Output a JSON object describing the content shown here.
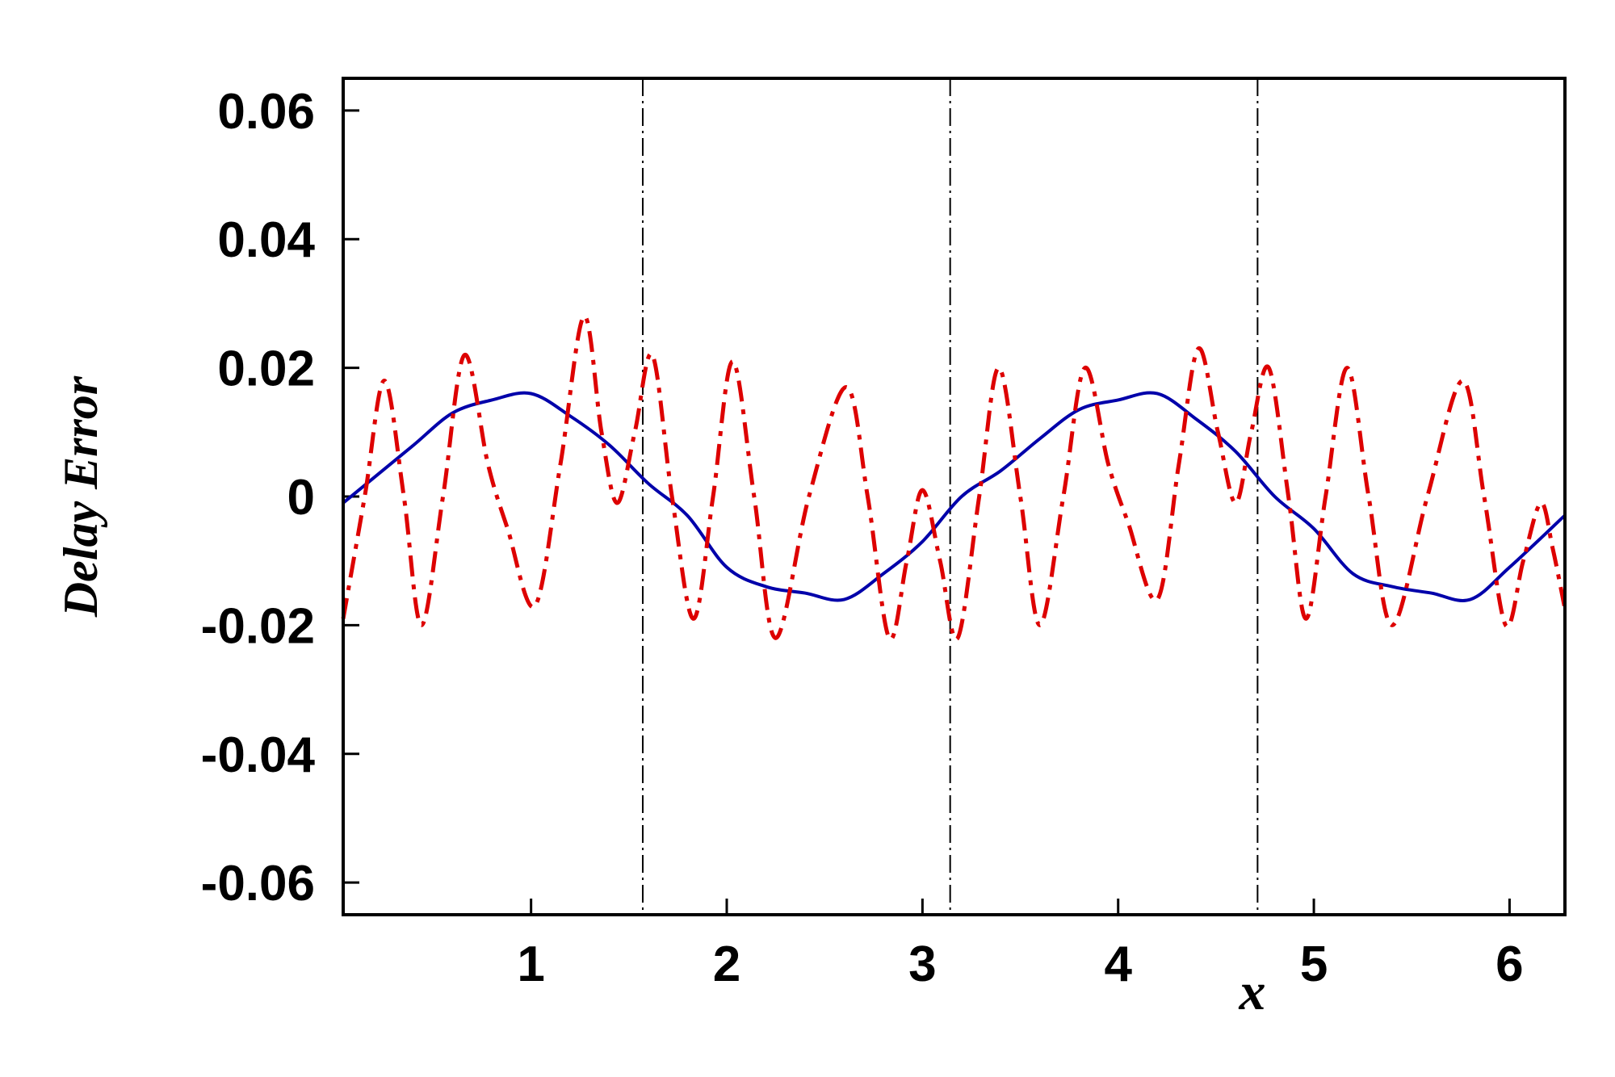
{
  "chart_data": {
    "type": "line",
    "xlabel": "x",
    "ylabel": "Delay Error",
    "xlim": [
      0.04,
      6.283
    ],
    "ylim": [
      -0.065,
      0.065
    ],
    "xticks": [
      1,
      2,
      3,
      4,
      5,
      6
    ],
    "yticks": [
      -0.06,
      -0.04,
      -0.02,
      0,
      0.02,
      0.04,
      0.06
    ],
    "vlines": [
      1.5708,
      3.1416,
      4.7124
    ],
    "series": [
      {
        "color": "#0000aa",
        "style": "solid",
        "x": [
          0.04,
          0.2,
          0.4,
          0.6,
          0.8,
          1.0,
          1.2,
          1.4,
          1.6,
          1.8,
          2.0,
          2.2,
          2.4,
          2.6,
          2.8,
          3.0,
          3.2,
          3.4,
          3.6,
          3.8,
          4.0,
          4.2,
          4.4,
          4.6,
          4.8,
          5.0,
          5.2,
          5.4,
          5.6,
          5.8,
          6.0,
          6.28
        ],
        "values": [
          -0.001,
          0.003,
          0.008,
          0.013,
          0.015,
          0.016,
          0.0125,
          0.008,
          0.002,
          -0.003,
          -0.011,
          -0.014,
          -0.015,
          -0.016,
          -0.012,
          -0.007,
          0.0,
          0.004,
          0.009,
          0.0135,
          0.015,
          0.016,
          0.012,
          0.007,
          0.0,
          -0.005,
          -0.012,
          -0.014,
          -0.015,
          -0.016,
          -0.011,
          -0.003
        ]
      },
      {
        "color": "#dd0000",
        "style": "dashdot",
        "x": [
          0.04,
          0.15,
          0.25,
          0.35,
          0.44,
          0.55,
          0.66,
          0.78,
          0.88,
          1.02,
          1.15,
          1.27,
          1.36,
          1.44,
          1.53,
          1.62,
          1.72,
          1.83,
          1.93,
          2.03,
          2.14,
          2.25,
          2.42,
          2.61,
          2.72,
          2.83,
          2.92,
          3.0,
          3.09,
          3.18,
          3.29,
          3.39,
          3.5,
          3.6,
          3.72,
          3.83,
          3.95,
          4.05,
          4.2,
          4.31,
          4.41,
          4.51,
          4.6,
          4.68,
          4.77,
          4.87,
          4.96,
          5.06,
          5.17,
          5.28,
          5.4,
          5.58,
          5.76,
          5.87,
          5.98,
          6.07,
          6.16,
          6.22,
          6.28
        ],
        "values": [
          -0.019,
          0.0,
          0.018,
          0.0,
          -0.02,
          0.0,
          0.022,
          0.005,
          -0.005,
          -0.017,
          0.005,
          0.028,
          0.01,
          -0.001,
          0.01,
          0.022,
          0.0,
          -0.019,
          0.0,
          0.021,
          0.0,
          -0.022,
          0.0,
          0.017,
          0.0,
          -0.022,
          -0.01,
          0.001,
          -0.01,
          -0.022,
          0.0,
          0.02,
          0.0,
          -0.02,
          0.0,
          0.02,
          0.005,
          -0.004,
          -0.016,
          0.005,
          0.023,
          0.01,
          -0.001,
          0.01,
          0.02,
          0.0,
          -0.019,
          0.0,
          0.02,
          0.0,
          -0.02,
          0.0,
          0.018,
          0.0,
          -0.02,
          -0.01,
          -0.001,
          -0.008,
          -0.017
        ]
      }
    ]
  }
}
